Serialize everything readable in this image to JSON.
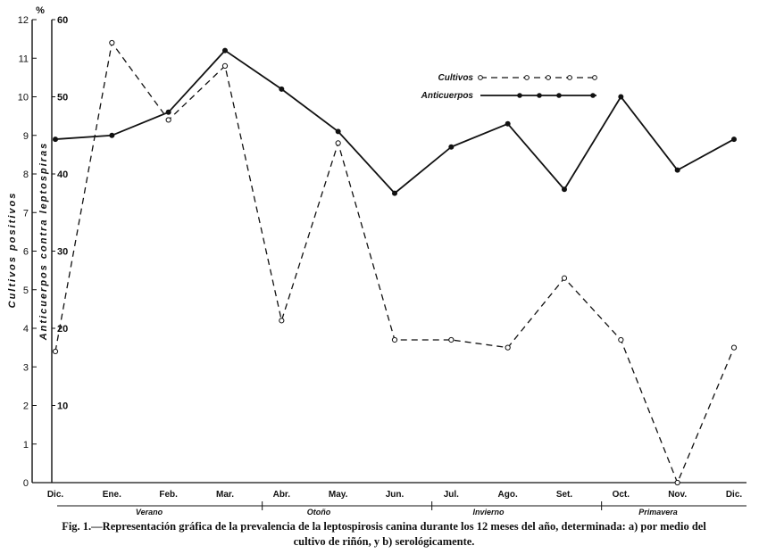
{
  "chart_data": {
    "type": "line",
    "categories": [
      "Dic.",
      "Ene.",
      "Feb.",
      "Mar.",
      "Abr.",
      "May.",
      "Jun.",
      "Jul.",
      "Ago.",
      "Set.",
      "Oct.",
      "Nov.",
      "Dic."
    ],
    "seasons": [
      "Verano",
      "Otoño",
      "Invierno",
      "Primavera"
    ],
    "left_axis": {
      "label": "Cultivos positivos",
      "unit": "%",
      "ylim": [
        0,
        12
      ],
      "ticks": [
        "0",
        "1",
        "2",
        "3",
        "4",
        "5",
        "6",
        "7",
        "8",
        "9",
        "10",
        "11",
        "12"
      ]
    },
    "right_axis": {
      "label": "Anticuerpos contra leptospiras",
      "ylim": [
        0,
        60
      ],
      "ticks": [
        "10",
        "20",
        "30",
        "40",
        "50",
        "60"
      ]
    },
    "series": [
      {
        "name": "Cultivos",
        "axis": "left",
        "style": "dashed",
        "marker": "open-circle",
        "values": [
          3.4,
          11.4,
          9.4,
          10.8,
          4.2,
          8.8,
          3.7,
          3.7,
          3.5,
          5.3,
          3.7,
          0.0,
          3.5
        ]
      },
      {
        "name": "Anticuerpos",
        "axis": "right",
        "style": "solid",
        "marker": "filled-circle",
        "values": [
          44.5,
          45.0,
          48.0,
          56.0,
          51.0,
          45.5,
          37.5,
          43.5,
          46.5,
          38.0,
          50.0,
          40.5,
          44.5
        ]
      }
    ],
    "legend_position": "top-right",
    "grid": false
  },
  "caption": {
    "line1": "Fig.  1.—Representación gráfica de la prevalencia de la leptospirosis canina durante los 12 meses del año, determinada: a) por medio del",
    "line2": "cultivo de riñón, y   b) serológicamente."
  }
}
